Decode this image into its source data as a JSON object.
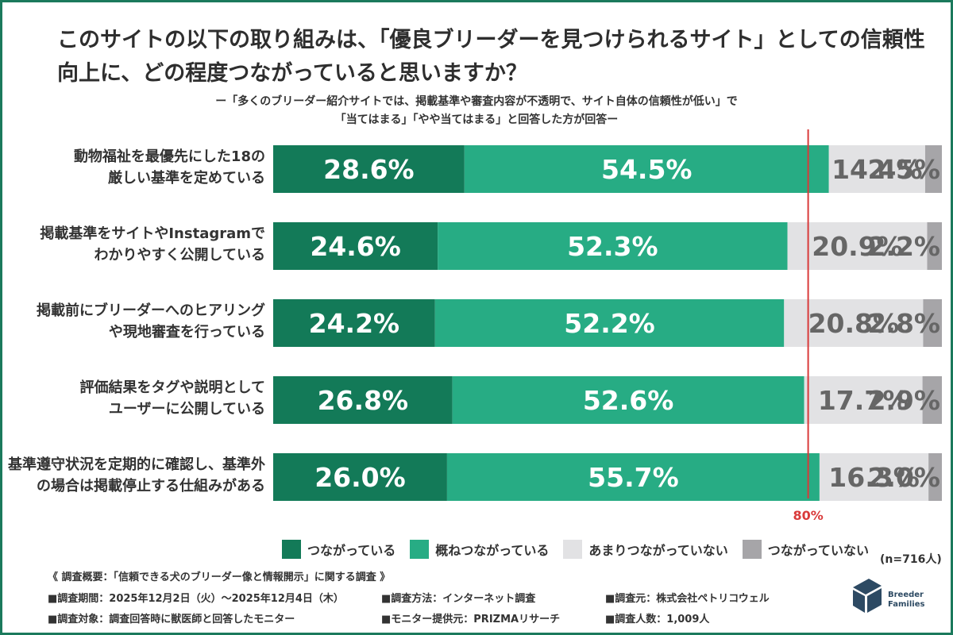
{
  "title": "このサイトの以下の取り組みは、「優良ブリーダーを見つけられるサイト」としての信頼性向上に、どの程度つながっていると思いますか？",
  "subtitle_line1": "ー「多くのブリーダー紹介サイトでは、掲載基準や審査内容が不透明で、サイト自体の信頼性が低い」で",
  "subtitle_line2": "「当てはまる」「やや当てはまる」と回答した方が回答ー",
  "chart_data": {
    "type": "bar",
    "orientation": "horizontal",
    "stacked": true,
    "percent": true,
    "categories": [
      [
        "動物福祉を最優先にした18の",
        "厳しい基準を定めている"
      ],
      [
        "掲載基準をサイトやInstagramで",
        "わかりやすく公開している"
      ],
      [
        "掲載前にブリーダーへのヒアリング",
        "や現地審査を行っている"
      ],
      [
        "評価結果をタグや説明として",
        "ユーザーに公開している"
      ],
      [
        "基準遵守状況を定期的に確認し、基準外",
        "の場合は掲載停止する仕組みがある"
      ]
    ],
    "series": [
      {
        "name": "つながっている",
        "color": "#137a58",
        "values": [
          28.6,
          24.6,
          24.2,
          26.8,
          26.0
        ]
      },
      {
        "name": "概ねつながっている",
        "color": "#27ac84",
        "values": [
          54.5,
          52.3,
          52.2,
          52.6,
          55.7
        ]
      },
      {
        "name": "あまりつながっていない",
        "color": "#e2e2e4",
        "values": [
          14.4,
          20.9,
          20.8,
          17.7,
          16.3
        ]
      },
      {
        "name": "つながっていない",
        "color": "#a6a5a8",
        "values": [
          2.5,
          2.2,
          2.8,
          2.9,
          2.0
        ]
      }
    ],
    "value_labels": [
      [
        "28.6%",
        "24.6%",
        "24.2%",
        "26.8%",
        "26.0%"
      ],
      [
        "54.5%",
        "52.3%",
        "52.2%",
        "52.6%",
        "55.7%"
      ],
      [
        "14.4%",
        "20.9%",
        "20.8%",
        "17.7%",
        "16.3%"
      ],
      [
        "2.5%",
        "2.2%",
        "2.8%",
        "2.9%",
        "2.0%"
      ]
    ],
    "label_colors": [
      "#ffffff",
      "#ffffff",
      "#666666",
      "#666666"
    ],
    "reference_line": {
      "value": 80,
      "label": "80%",
      "color": "#d93a3a"
    },
    "xlim": [
      0,
      100
    ],
    "legend_position": "bottom"
  },
  "sample_size": "(n=716人)",
  "footer": {
    "heading": "《 調査概要：「信頼できる犬のブリーダー像と情報開示」に関する調査 》",
    "period": "■調査期間：2025年12月2日（火）〜2025年12月4日（木）",
    "method": "■調査方法：インターネット調査",
    "organizer": "■調査元：株式会社ペトリコウェル",
    "target": "■調査対象：調査回答時に獣医師と回答したモニター",
    "provider": "■モニター提供元：PRIZMAリサーチ",
    "respondents": "■調査人数：1,009人"
  },
  "logo": {
    "line1": "Breeder",
    "line2": "Families"
  },
  "colors": {
    "frame": "#1b7a5c",
    "logo": "#2d4a63"
  }
}
